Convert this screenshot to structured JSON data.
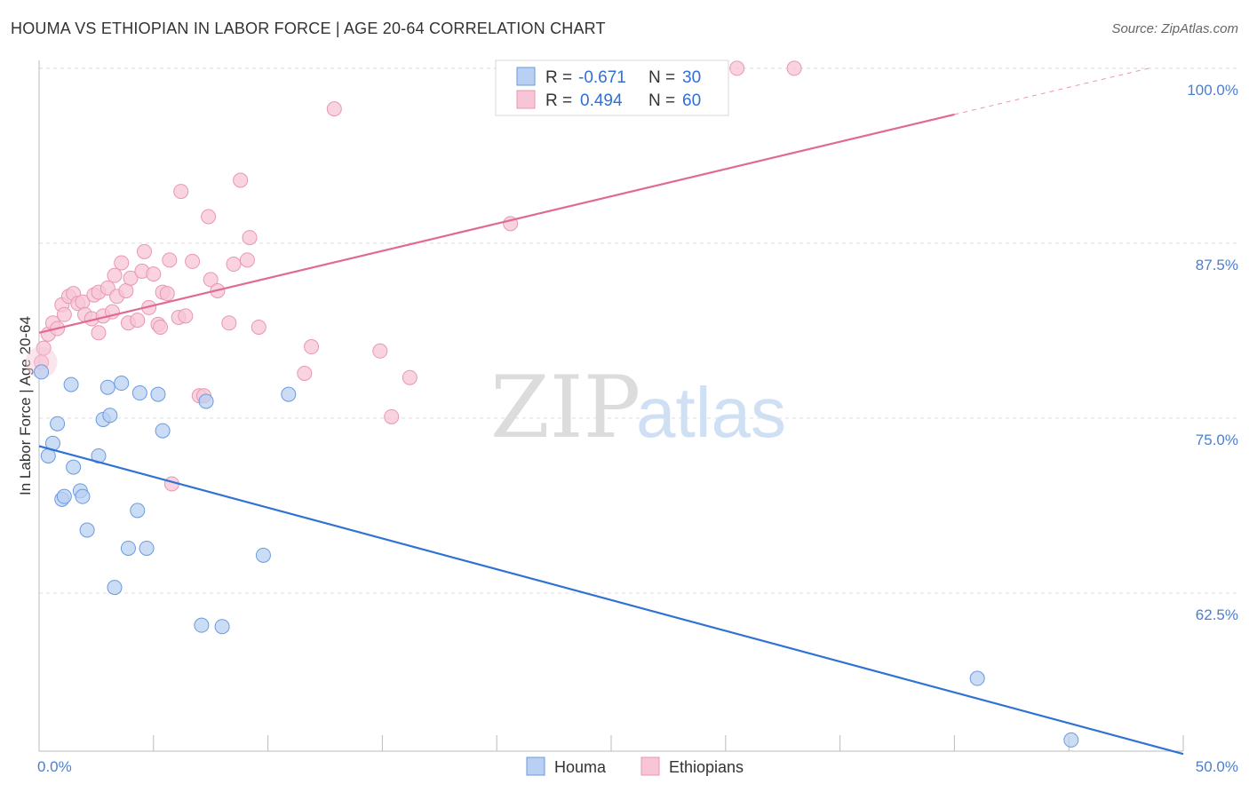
{
  "title": "HOUMA VS ETHIOPIAN IN LABOR FORCE | AGE 20-64 CORRELATION CHART",
  "source": "Source: ZipAtlas.com",
  "watermark": {
    "part1": "ZIP",
    "part2": "atlas"
  },
  "colors": {
    "houma_fill": "#b9d0f2",
    "houma_stroke": "#6a9ae0",
    "houma_line": "#2f72d3",
    "eth_fill": "#f7c5d5",
    "eth_stroke": "#e996b3",
    "eth_line": "#e06a93",
    "grid": "#dddddd",
    "tick_label": "#4a7fd0"
  },
  "legend": {
    "r_label": "R =",
    "n_label": "N =",
    "houma": {
      "r": "-0.671",
      "n": "30"
    },
    "ethiopians": {
      "r": "0.494",
      "n": "60"
    }
  },
  "bottom_legend": [
    "Houma",
    "Ethiopians"
  ],
  "chart_data": {
    "type": "scatter",
    "title": "HOUMA VS ETHIOPIAN IN LABOR FORCE | AGE 20-64 CORRELATION CHART",
    "xlabel": "",
    "ylabel": "In Labor Force | Age 20-64",
    "xlim": [
      0,
      50
    ],
    "ylim": [
      51.2,
      101.2
    ],
    "x_tick_labels": [
      "0.0%",
      "50.0%"
    ],
    "y_ticks": [
      62.5,
      75.0,
      87.5,
      100.0
    ],
    "y_tick_labels": [
      "62.5%",
      "75.0%",
      "87.5%",
      "100.0%"
    ],
    "series": [
      {
        "name": "Houma",
        "r": -0.671,
        "n": 30,
        "trend": {
          "x0": 0.0,
          "y0": 73.0,
          "x1": 50.0,
          "y1": 51.0
        },
        "points": [
          [
            0.1,
            78.3
          ],
          [
            0.4,
            72.3
          ],
          [
            0.6,
            73.2
          ],
          [
            0.8,
            74.6
          ],
          [
            1.0,
            69.2
          ],
          [
            1.1,
            69.4
          ],
          [
            1.4,
            77.4
          ],
          [
            1.5,
            71.5
          ],
          [
            1.8,
            69.8
          ],
          [
            1.9,
            69.4
          ],
          [
            2.1,
            67.0
          ],
          [
            2.6,
            72.3
          ],
          [
            2.8,
            74.9
          ],
          [
            3.0,
            77.2
          ],
          [
            3.1,
            75.2
          ],
          [
            3.3,
            62.9
          ],
          [
            3.6,
            77.5
          ],
          [
            3.9,
            65.7
          ],
          [
            4.3,
            68.4
          ],
          [
            4.4,
            76.8
          ],
          [
            4.7,
            65.7
          ],
          [
            5.2,
            76.7
          ],
          [
            5.4,
            74.1
          ],
          [
            7.1,
            60.2
          ],
          [
            7.3,
            76.2
          ],
          [
            8.0,
            60.1
          ],
          [
            9.8,
            65.2
          ],
          [
            10.9,
            76.7
          ],
          [
            41.0,
            56.4
          ],
          [
            45.1,
            52.0
          ]
        ]
      },
      {
        "name": "Ethiopians",
        "r": 0.494,
        "n": 60,
        "trend": {
          "x0": 0.0,
          "y0": 81.1,
          "x1": 40.0,
          "y1": 96.7,
          "dash_to_x": 48.5,
          "dash_to_y": 100.0
        },
        "points": [
          [
            0.1,
            79.0
          ],
          [
            0.2,
            80.0
          ],
          [
            0.4,
            81.0
          ],
          [
            0.6,
            81.8
          ],
          [
            0.8,
            81.4
          ],
          [
            1.0,
            83.1
          ],
          [
            1.1,
            82.4
          ],
          [
            1.3,
            83.7
          ],
          [
            1.5,
            83.9
          ],
          [
            1.7,
            83.2
          ],
          [
            1.9,
            83.3
          ],
          [
            2.0,
            82.4
          ],
          [
            2.3,
            82.1
          ],
          [
            2.4,
            83.8
          ],
          [
            2.6,
            84.0
          ],
          [
            2.6,
            81.1
          ],
          [
            2.8,
            82.3
          ],
          [
            3.0,
            84.3
          ],
          [
            3.2,
            82.6
          ],
          [
            3.3,
            85.2
          ],
          [
            3.4,
            83.7
          ],
          [
            3.6,
            86.1
          ],
          [
            3.8,
            84.1
          ],
          [
            3.9,
            81.8
          ],
          [
            4.0,
            85.0
          ],
          [
            4.3,
            82.0
          ],
          [
            4.5,
            85.5
          ],
          [
            4.6,
            86.9
          ],
          [
            4.8,
            82.9
          ],
          [
            5.0,
            85.3
          ],
          [
            5.2,
            81.7
          ],
          [
            5.3,
            81.5
          ],
          [
            5.4,
            84.0
          ],
          [
            5.6,
            83.9
          ],
          [
            5.7,
            86.3
          ],
          [
            5.8,
            70.3
          ],
          [
            6.1,
            82.2
          ],
          [
            6.2,
            91.2
          ],
          [
            6.4,
            82.3
          ],
          [
            6.7,
            86.2
          ],
          [
            7.0,
            76.6
          ],
          [
            7.2,
            76.6
          ],
          [
            7.4,
            89.4
          ],
          [
            7.5,
            84.9
          ],
          [
            7.8,
            84.1
          ],
          [
            8.3,
            81.8
          ],
          [
            8.5,
            86.0
          ],
          [
            8.8,
            92.0
          ],
          [
            9.1,
            86.3
          ],
          [
            9.2,
            87.9
          ],
          [
            9.6,
            81.5
          ],
          [
            11.6,
            78.2
          ],
          [
            11.9,
            80.1
          ],
          [
            12.9,
            97.1
          ],
          [
            14.9,
            79.8
          ],
          [
            15.4,
            75.1
          ],
          [
            16.2,
            77.9
          ],
          [
            20.6,
            88.9
          ],
          [
            30.5,
            100.0
          ],
          [
            33.0,
            100.0
          ]
        ]
      }
    ]
  }
}
